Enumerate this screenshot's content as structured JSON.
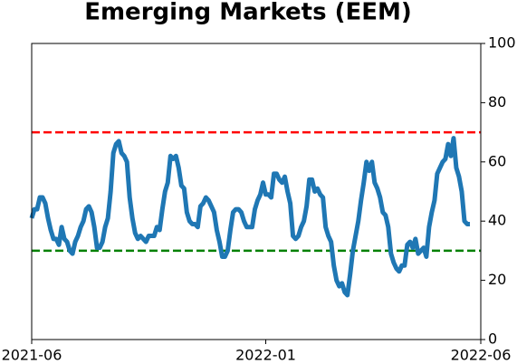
{
  "chart_data": {
    "type": "line",
    "title": "Emerging Markets (EEM)",
    "x": [
      0,
      1,
      2,
      3,
      4,
      5,
      6,
      7,
      8,
      9,
      10,
      11,
      12,
      13,
      14,
      15,
      16,
      17,
      18,
      19,
      20,
      21,
      22,
      23,
      24,
      25,
      26,
      27,
      28,
      29,
      30,
      31,
      32,
      33,
      34,
      35,
      36,
      37,
      38,
      39,
      40,
      41,
      42,
      43,
      44,
      45,
      46,
      47,
      48,
      49,
      50,
      51,
      52,
      53,
      54,
      55,
      56,
      57,
      58,
      59,
      60,
      61,
      62,
      63,
      64,
      65,
      66,
      67,
      68,
      69,
      70,
      71,
      72,
      73,
      74,
      75,
      76,
      77,
      78,
      79,
      80,
      81,
      82,
      83,
      84,
      85,
      86,
      87,
      88,
      89,
      90,
      91,
      92,
      93,
      94,
      95,
      96,
      97,
      98,
      99,
      100,
      101,
      102,
      103,
      104,
      105,
      106,
      107,
      108,
      109,
      110,
      111,
      112,
      113,
      114,
      115,
      116,
      117,
      118,
      119,
      120,
      121,
      122,
      123,
      124,
      125,
      126,
      127,
      128,
      129,
      130,
      131,
      132,
      133,
      134,
      135,
      136,
      137,
      138,
      139,
      140,
      141,
      142,
      143,
      144,
      145,
      146,
      147,
      148,
      149,
      150,
      151,
      152,
      153,
      154,
      155,
      156,
      157,
      158,
      159,
      160,
      161
    ],
    "values": [
      41,
      44,
      44,
      48,
      48,
      46,
      41,
      37,
      34,
      34,
      32,
      38,
      34,
      33,
      30,
      29,
      33,
      35,
      38,
      40,
      44,
      45,
      43,
      38,
      31,
      31,
      33,
      38,
      41,
      50,
      63,
      66,
      67,
      63,
      62,
      60,
      48,
      41,
      36,
      34,
      35,
      34,
      33,
      35,
      35,
      35,
      38,
      37,
      44,
      50,
      53,
      62,
      61,
      62,
      58,
      52,
      51,
      43,
      40,
      39,
      39,
      38,
      45,
      46,
      48,
      47,
      45,
      43,
      37,
      33,
      28,
      28,
      30,
      37,
      43,
      44,
      44,
      43,
      40,
      38,
      38,
      38,
      44,
      47,
      49,
      53,
      49,
      49,
      48,
      56,
      56,
      54,
      53,
      55,
      50,
      46,
      35,
      34,
      35,
      38,
      40,
      45,
      54,
      54,
      50,
      51,
      49,
      48,
      38,
      35,
      33,
      25,
      20,
      18,
      19,
      16,
      15,
      22,
      30,
      35,
      40,
      47,
      53,
      60,
      57,
      60,
      53,
      51,
      48,
      43,
      42,
      38,
      29,
      26,
      24,
      23,
      25,
      25,
      32,
      33,
      31,
      34,
      29,
      30,
      31,
      28,
      38,
      43,
      47,
      56,
      58,
      60,
      61,
      66,
      62,
      68,
      58,
      55,
      50,
      40,
      39,
      39
    ],
    "color": "#1f77b4",
    "xlim": [
      0,
      165
    ],
    "xticks": [
      {
        "value": 0,
        "label": "2021-06"
      },
      {
        "value": 86,
        "label": "2022-01"
      },
      {
        "value": 165,
        "label": "2022-06"
      }
    ],
    "ylim": [
      0,
      100
    ],
    "yticks": [
      0,
      20,
      40,
      60,
      80,
      100
    ],
    "y_axis_side": "right",
    "hlines": [
      {
        "value": 70,
        "color": "#ff0000"
      },
      {
        "value": 30,
        "color": "#008000"
      }
    ]
  }
}
